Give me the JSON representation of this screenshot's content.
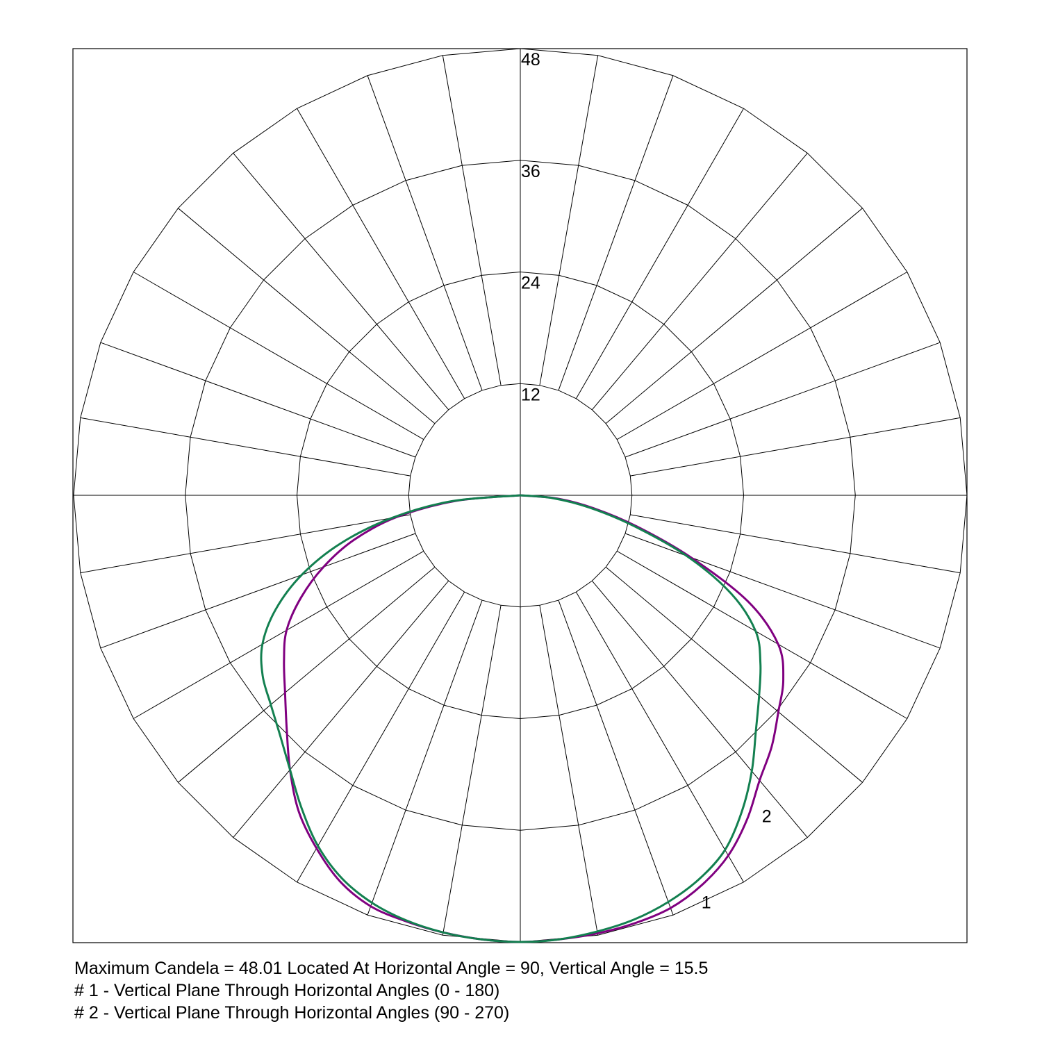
{
  "chart_data": {
    "type": "polar",
    "radial_max": 48,
    "radial_ticks": [
      {
        "value": 12,
        "label": "12"
      },
      {
        "value": 24,
        "label": "24"
      },
      {
        "value": 36,
        "label": "36"
      },
      {
        "value": 48,
        "label": "48"
      }
    ],
    "angular_step_deg": 10,
    "grid": true,
    "series": [
      {
        "label": "1",
        "color": "#800080",
        "points": [
          [
            0,
            48.0
          ],
          [
            5,
            47.9
          ],
          [
            10,
            47.8
          ],
          [
            15,
            47.6
          ],
          [
            20,
            47.2
          ],
          [
            25,
            46.2
          ],
          [
            30,
            44.7
          ],
          [
            35,
            42.5
          ],
          [
            40,
            40.0
          ],
          [
            45,
            38.2
          ],
          [
            50,
            36.2
          ],
          [
            55,
            34.5
          ],
          [
            60,
            32.0
          ],
          [
            65,
            27.0
          ],
          [
            70,
            19.5
          ],
          [
            75,
            13.0
          ],
          [
            80,
            8.0
          ],
          [
            85,
            4.0
          ],
          [
            90,
            0.0
          ]
        ],
        "mirror_points": [
          [
            0,
            48.0
          ],
          [
            5,
            47.9
          ],
          [
            10,
            47.7
          ],
          [
            15,
            47.4
          ],
          [
            20,
            47.0
          ],
          [
            25,
            45.8
          ],
          [
            30,
            43.8
          ],
          [
            35,
            41.5
          ],
          [
            40,
            38.5
          ],
          [
            45,
            35.5
          ],
          [
            50,
            33.0
          ],
          [
            55,
            31.0
          ],
          [
            60,
            29.0
          ],
          [
            65,
            26.0
          ],
          [
            70,
            22.5
          ],
          [
            75,
            18.5
          ],
          [
            80,
            13.5
          ],
          [
            85,
            7.0
          ],
          [
            90,
            0.0
          ]
        ]
      },
      {
        "label": "2",
        "color": "#138050",
        "points": [
          [
            0,
            48.0
          ],
          [
            5,
            47.9
          ],
          [
            10,
            47.6
          ],
          [
            15,
            47.2
          ],
          [
            20,
            46.5
          ],
          [
            25,
            45.5
          ],
          [
            30,
            44.0
          ],
          [
            35,
            41.5
          ],
          [
            40,
            38.7
          ],
          [
            45,
            35.8
          ],
          [
            50,
            33.5
          ],
          [
            55,
            31.5
          ],
          [
            60,
            29.2
          ],
          [
            65,
            25.0
          ],
          [
            70,
            19.0
          ],
          [
            75,
            12.5
          ],
          [
            80,
            7.5
          ],
          [
            85,
            3.5
          ],
          [
            90,
            0.0
          ]
        ],
        "mirror_points": [
          [
            0,
            48.0
          ],
          [
            5,
            47.9
          ],
          [
            10,
            47.7
          ],
          [
            15,
            47.3
          ],
          [
            20,
            46.6
          ],
          [
            25,
            45.4
          ],
          [
            30,
            43.5
          ],
          [
            35,
            41.0
          ],
          [
            40,
            38.5
          ],
          [
            45,
            36.5
          ],
          [
            50,
            35.0
          ],
          [
            55,
            33.8
          ],
          [
            60,
            32.0
          ],
          [
            65,
            29.0
          ],
          [
            70,
            25.0
          ],
          [
            75,
            20.0
          ],
          [
            80,
            14.0
          ],
          [
            85,
            7.5
          ],
          [
            90,
            0.0
          ]
        ]
      }
    ]
  },
  "caption": {
    "line1": "Maximum Candela = 48.01   Located At Horizontal Angle = 90, Vertical Angle = 15.5",
    "line2": "# 1 - Vertical Plane Through Horizontal Angles (0 - 180)",
    "line3": "# 2 - Vertical Plane Through Horizontal Angles (90 - 270)"
  }
}
